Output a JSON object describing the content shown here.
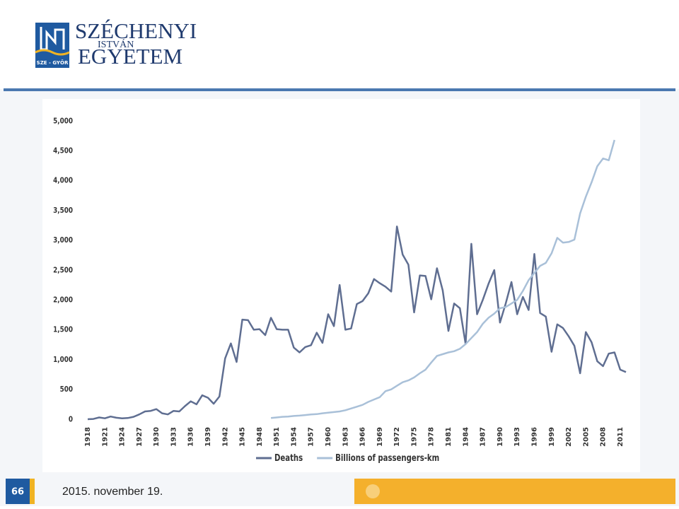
{
  "header": {
    "logo_top": "SZÉCHENYI",
    "logo_middle": "ISTVÁN",
    "logo_bottom": "EGYETEM",
    "logo_badge": "SZE - GYŐR"
  },
  "footer": {
    "page_number": "66",
    "date": "2015. november 19."
  },
  "chart_data": {
    "type": "line",
    "x": [
      1918,
      1919,
      1920,
      1921,
      1922,
      1923,
      1924,
      1925,
      1926,
      1927,
      1928,
      1929,
      1930,
      1931,
      1932,
      1933,
      1934,
      1935,
      1936,
      1937,
      1938,
      1939,
      1940,
      1941,
      1942,
      1943,
      1944,
      1945,
      1946,
      1947,
      1948,
      1949,
      1950,
      1951,
      1952,
      1953,
      1954,
      1955,
      1956,
      1957,
      1958,
      1959,
      1960,
      1961,
      1962,
      1963,
      1964,
      1965,
      1966,
      1967,
      1968,
      1969,
      1970,
      1971,
      1972,
      1973,
      1974,
      1975,
      1976,
      1977,
      1978,
      1979,
      1980,
      1981,
      1982,
      1983,
      1984,
      1985,
      1986,
      1987,
      1988,
      1989,
      1990,
      1991,
      1992,
      1993,
      1994,
      1995,
      1996,
      1997,
      1998,
      1999,
      2000,
      2001,
      2002,
      2003,
      2004,
      2005,
      2006,
      2007,
      2008,
      2009,
      2010,
      2011,
      2012
    ],
    "series": [
      {
        "name": "Deaths",
        "color": "#5f6e91",
        "values": [
          0,
          5,
          30,
          15,
          45,
          25,
          15,
          20,
          40,
          80,
          130,
          140,
          170,
          100,
          80,
          140,
          130,
          220,
          300,
          250,
          400,
          360,
          260,
          380,
          1020,
          1270,
          960,
          1670,
          1660,
          1500,
          1510,
          1410,
          1700,
          1510,
          1500,
          1500,
          1200,
          1120,
          1210,
          1240,
          1450,
          1280,
          1760,
          1560,
          2250,
          1500,
          1520,
          1930,
          1980,
          2110,
          2350,
          2280,
          2220,
          2140,
          3230,
          2760,
          2590,
          1790,
          2410,
          2400,
          2010,
          2530,
          2160,
          1480,
          1940,
          1860,
          1260,
          2940,
          1760,
          2000,
          2270,
          2500,
          1620,
          1940,
          2300,
          1760,
          2050,
          1830,
          2770,
          1780,
          1720,
          1130,
          1590,
          1530,
          1390,
          1230,
          770,
          1460,
          1290,
          970,
          890,
          1100,
          1120,
          830,
          790
        ]
      },
      {
        "name": "Billions of passengers-km",
        "color": "#a9c0d8",
        "values": [
          null,
          null,
          null,
          null,
          null,
          null,
          null,
          null,
          null,
          null,
          null,
          null,
          null,
          null,
          null,
          null,
          null,
          null,
          null,
          null,
          null,
          null,
          null,
          null,
          null,
          null,
          null,
          null,
          null,
          null,
          null,
          null,
          20,
          30,
          40,
          45,
          55,
          60,
          70,
          80,
          85,
          100,
          110,
          120,
          130,
          150,
          180,
          210,
          240,
          290,
          330,
          370,
          470,
          500,
          560,
          620,
          650,
          700,
          770,
          830,
          950,
          1060,
          1090,
          1120,
          1140,
          1180,
          1260,
          1360,
          1460,
          1600,
          1700,
          1770,
          1860,
          1880,
          1940,
          2000,
          2150,
          2330,
          2450,
          2570,
          2620,
          2780,
          3040,
          2960,
          2970,
          3010,
          3450,
          3730,
          3970,
          4240,
          4370,
          4340,
          4680,
          null,
          null
        ]
      }
    ],
    "xlim": [
      1918,
      2012
    ],
    "xticks": [
      1918,
      1921,
      1924,
      1927,
      1930,
      1933,
      1936,
      1939,
      1942,
      1945,
      1948,
      1951,
      1954,
      1957,
      1960,
      1963,
      1966,
      1969,
      1972,
      1975,
      1978,
      1981,
      1984,
      1987,
      1990,
      1993,
      1996,
      1999,
      2002,
      2005,
      2008,
      2011
    ],
    "ylim": [
      0,
      5000
    ],
    "yticks": [
      0,
      500,
      {
        "value": 1000,
        "label": "1,000"
      },
      {
        "value": 1500,
        "label": "1,500"
      },
      {
        "value": 2000,
        "label": "2,000"
      },
      {
        "value": 2500,
        "label": "2,500"
      },
      {
        "value": 3000,
        "label": "3,000"
      },
      {
        "value": 3500,
        "label": "3,500"
      },
      {
        "value": 4000,
        "label": "4,000"
      },
      {
        "value": 4500,
        "label": "4,500"
      },
      {
        "value": 5000,
        "label": "5,000"
      }
    ],
    "grid": false,
    "legend": "bottom"
  }
}
